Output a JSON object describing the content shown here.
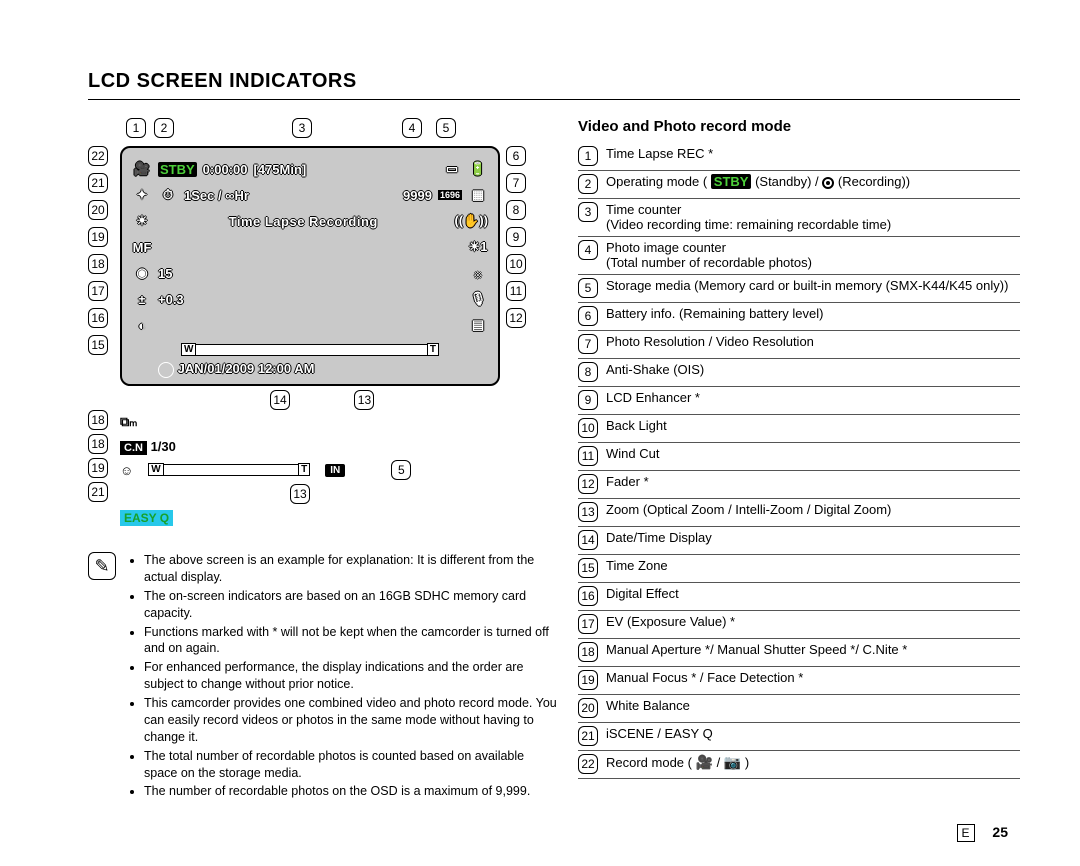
{
  "page": {
    "title": "LCD SCREEN INDICATORS",
    "section_heading": "Video and Photo record mode",
    "page_lang": "E",
    "page_number": "25"
  },
  "lcd": {
    "stby_label": "STBY",
    "time_counter": "0:00:00",
    "remaining_time": "[475Min]",
    "interval": "1Sec / ∞Hr",
    "photo_counter": "9999",
    "photo_res": "1696",
    "center_text": "Time Lapse Recording",
    "manual_value": "15",
    "ev_value": "+0.3",
    "date_time": "JAN/01/2009 12:00 AM",
    "zoom_w": "W",
    "zoom_t": "T"
  },
  "sub": {
    "cn_label": "C.N",
    "cn_value": "1/30",
    "in_label": "IN",
    "easyq": "EASY Q"
  },
  "callouts": {
    "top": [
      "1",
      "2",
      "3",
      "4",
      "5"
    ],
    "right": [
      "6",
      "7",
      "8",
      "9",
      "10",
      "11",
      "12"
    ],
    "left": [
      "22",
      "21",
      "20",
      "19",
      "18",
      "17",
      "16",
      "15"
    ],
    "bottom": [
      "14",
      "13"
    ],
    "sub_left": [
      "18",
      "18",
      "19",
      "21"
    ],
    "sub_right": "5",
    "sub_bottom": "13"
  },
  "legend": [
    {
      "n": "1",
      "text": "Time Lapse REC *"
    },
    {
      "n": "2",
      "text": "Operating mode ( ",
      "extra": "stby_rec"
    },
    {
      "n": "3",
      "text": "Time counter",
      "sub": "(Video recording time: remaining recordable time)"
    },
    {
      "n": "4",
      "text": "Photo image counter",
      "sub": "(Total number of recordable photos)"
    },
    {
      "n": "5",
      "text": "Storage media (Memory card or built-in memory (SMX-K44/K45 only))"
    },
    {
      "n": "6",
      "text": "Battery info. (Remaining battery level)"
    },
    {
      "n": "7",
      "text": "Photo Resolution / Video Resolution"
    },
    {
      "n": "8",
      "text": "Anti-Shake (OIS)"
    },
    {
      "n": "9",
      "text": "LCD Enhancer *"
    },
    {
      "n": "10",
      "text": "Back Light"
    },
    {
      "n": "11",
      "text": "Wind Cut"
    },
    {
      "n": "12",
      "text": "Fader *"
    },
    {
      "n": "13",
      "text": "Zoom (Optical Zoom / Intelli-Zoom / Digital Zoom)"
    },
    {
      "n": "14",
      "text": "Date/Time Display"
    },
    {
      "n": "15",
      "text": "Time Zone"
    },
    {
      "n": "16",
      "text": "Digital Effect"
    },
    {
      "n": "17",
      "text": "EV (Exposure Value) *"
    },
    {
      "n": "18",
      "text": "Manual Aperture */ Manual Shutter Speed */ C.Nite *"
    },
    {
      "n": "19",
      "text": "Manual Focus * / Face Detection *"
    },
    {
      "n": "20",
      "text": "White Balance"
    },
    {
      "n": "21",
      "text": "iSCENE / EASY Q"
    },
    {
      "n": "22",
      "text": "Record mode ( ",
      "extra": "rec_mode"
    }
  ],
  "legend_inline": {
    "stby": "STBY",
    "standby_text": " (Standby) / ",
    "recording_text": " (Recording))",
    "rec_mode_sep": " / ",
    "rec_mode_close": " )"
  },
  "notes": [
    "The above screen is an example for explanation: It is different from the actual display.",
    "The on-screen indicators are based on an 16GB SDHC memory card capacity.",
    "Functions marked with * will not be kept when the camcorder is turned off and on again.",
    "For enhanced performance, the display indications and the order are subject to change without prior notice.",
    "This camcorder provides one combined video and photo record mode. You can easily record videos or photos in the same mode without having to change it.",
    "The total number of recordable photos is counted based on available space on the storage media.",
    "The number of recordable photos on the OSD is a maximum of 9,999."
  ],
  "colors": {
    "stby_green": "#4dd03a",
    "easyq_bg": "#28c8ea",
    "lcd_bg": "#c9c9c9"
  }
}
